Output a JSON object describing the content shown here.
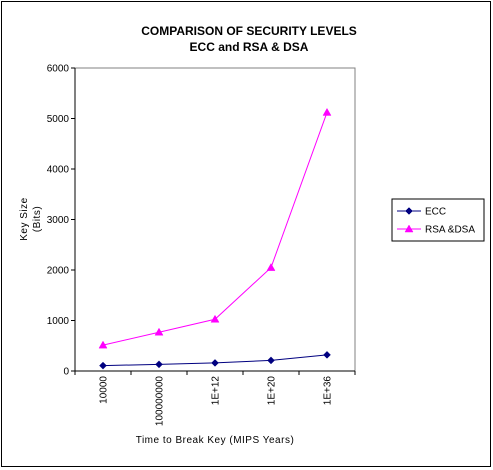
{
  "chart_data": {
    "type": "line",
    "title": [
      "COMPARISON OF SECURITY LEVELS",
      "ECC and RSA & DSA"
    ],
    "xlabel": "Time to Break Key (MIPS Years)",
    "ylabel": [
      "Key Size",
      "(Bits)"
    ],
    "categories": [
      "10000",
      "100000000",
      "1E+12",
      "1E+20",
      "1E+36"
    ],
    "ylim": [
      0,
      6000
    ],
    "yticks": [
      0,
      1000,
      2000,
      3000,
      4000,
      5000,
      6000
    ],
    "grid": false,
    "legend_position": "right",
    "series": [
      {
        "name": "ECC",
        "values": [
          106,
          132,
          160,
          210,
          320
        ],
        "color": "#000080",
        "marker": "diamond"
      },
      {
        "name": "RSA &DSA",
        "values": [
          512,
          768,
          1024,
          2048,
          5120
        ],
        "color": "#ff00ff",
        "marker": "triangle"
      }
    ]
  }
}
